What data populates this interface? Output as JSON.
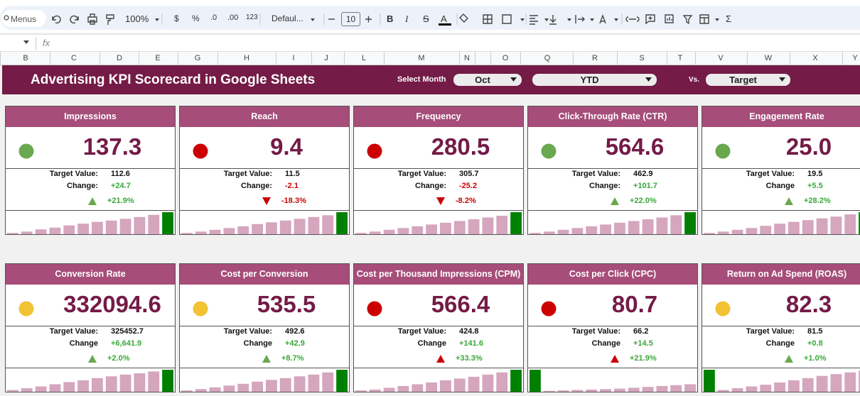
{
  "toolbar": {
    "search": "Menus",
    "zoom": "100%",
    "currency": "$",
    "percent": "%",
    "decrease_decimal": ".0",
    "increase_decimal": ".00",
    "number_format": "123",
    "font": "Defaul...",
    "font_size": "10",
    "bold": "B",
    "italic": "I",
    "strikethrough": "S",
    "text_color": "A",
    "functions": "Σ"
  },
  "formula_bar": {
    "fx": "fx"
  },
  "columns": [
    "B",
    "C",
    "D",
    "E",
    "G",
    "H",
    "I",
    "J",
    "L",
    "M",
    "N",
    "O",
    "Q",
    "R",
    "S",
    "T",
    "V",
    "W",
    "X",
    "Y"
  ],
  "banner": {
    "title": "Advertising KPI Scorecard in Google Sheets",
    "select_month_label": "Select Month",
    "month": "Oct",
    "period": "YTD",
    "vs_label": "Vs.",
    "comparison": "Target"
  },
  "cards": [
    {
      "title": "Impressions",
      "value": "137.3",
      "status_color": "#6aa84f",
      "target_label": "Target Value:",
      "target": "112.6",
      "change_label": "Change:",
      "change": "+24.7",
      "change_pct": "+21.9%",
      "direction": "up",
      "sparkline": [
        6,
        12,
        22,
        30,
        40,
        48,
        56,
        62,
        70,
        78,
        88,
        100
      ],
      "highlight": 11
    },
    {
      "title": "Reach",
      "value": "9.4",
      "status_color": "#cc0000",
      "target_label": "Target Value:",
      "target": "11.5",
      "change_label": "Change:",
      "change": "-2.1",
      "change_pct": "-18.3%",
      "direction": "down",
      "sparkline": [
        6,
        12,
        20,
        28,
        36,
        46,
        54,
        62,
        70,
        78,
        86,
        100
      ],
      "highlight": 11
    },
    {
      "title": "Frequency",
      "value": "280.5",
      "status_color": "#cc0000",
      "target_label": "Target Value:",
      "target": "305.7",
      "change_label": "Change:",
      "change": "-25.2",
      "change_pct": "-8.2%",
      "direction": "down",
      "sparkline": [
        6,
        12,
        20,
        28,
        36,
        44,
        52,
        60,
        68,
        76,
        84,
        100
      ],
      "highlight": 11
    },
    {
      "title": "Click-Through Rate (CTR)",
      "value": "564.6",
      "status_color": "#6aa84f",
      "target_label": "Target Value:",
      "target": "462.9",
      "change_label": "Change:",
      "change": "+101.7",
      "change_pct": "+22.0%",
      "direction": "up",
      "sparkline": [
        6,
        12,
        20,
        28,
        36,
        44,
        52,
        60,
        68,
        76,
        86,
        100
      ],
      "highlight": 11
    },
    {
      "title": "Engagement Rate",
      "value": "25.0",
      "status_color": "#6aa84f",
      "target_label": "Target Value:",
      "target": "19.5",
      "change_label": "Change",
      "change": "+5.5",
      "change_pct": "+28.2%",
      "direction": "up",
      "sparkline": [
        6,
        12,
        20,
        28,
        38,
        48,
        56,
        64,
        72,
        80,
        90,
        100
      ],
      "highlight": 11
    },
    {
      "title": "Conversion Rate",
      "value": "332094.6",
      "status_color": "#f1c232",
      "target_label": "Target Value:",
      "target": "325452.7",
      "change_label": "Change",
      "change": "+6,641.9",
      "change_pct": "+2.0%",
      "direction": "up",
      "sparkline": [
        8,
        16,
        24,
        34,
        44,
        52,
        62,
        70,
        78,
        84,
        92,
        100
      ],
      "highlight": 11
    },
    {
      "title": "Cost per Conversion",
      "value": "535.5",
      "status_color": "#f1c232",
      "target_label": "Target Value:",
      "target": "492.6",
      "change_label": "Change",
      "change": "+42.9",
      "change_pct": "+8.7%",
      "direction": "up",
      "sparkline": [
        6,
        12,
        20,
        28,
        36,
        46,
        54,
        62,
        70,
        78,
        88,
        100
      ],
      "highlight": 11
    },
    {
      "title": "Cost per Thousand Impressions (CPM)",
      "value": "566.4",
      "status_color": "#cc0000",
      "target_label": "Target Value:",
      "target": "424.8",
      "change_label": "Change",
      "change": "+141.6",
      "change_pct": "+33.3%",
      "direction": "up",
      "sparkline": [
        6,
        10,
        18,
        26,
        34,
        42,
        52,
        60,
        68,
        78,
        88,
        100
      ],
      "highlight": 11
    },
    {
      "title": "Cost per Click (CPC)",
      "value": "80.7",
      "status_color": "#cc0000",
      "target_label": "Target Value:",
      "target": "66.2",
      "change_label": "Change",
      "change": "+14.5",
      "change_pct": "+21.9%",
      "direction": "up",
      "sparkline": [
        100,
        4,
        6,
        8,
        10,
        12,
        14,
        18,
        22,
        26,
        30,
        34
      ],
      "highlight": 0
    },
    {
      "title": "Return on Ad Spend (ROAS)",
      "value": "82.3",
      "status_color": "#f1c232",
      "target_label": "Target Value:",
      "target": "81.5",
      "change_label": "Change",
      "change": "+0.8",
      "change_pct": "+1.0%",
      "direction": "up",
      "sparkline": [
        100,
        8,
        16,
        24,
        32,
        42,
        52,
        62,
        72,
        80,
        88,
        96
      ],
      "highlight": 0
    }
  ]
}
